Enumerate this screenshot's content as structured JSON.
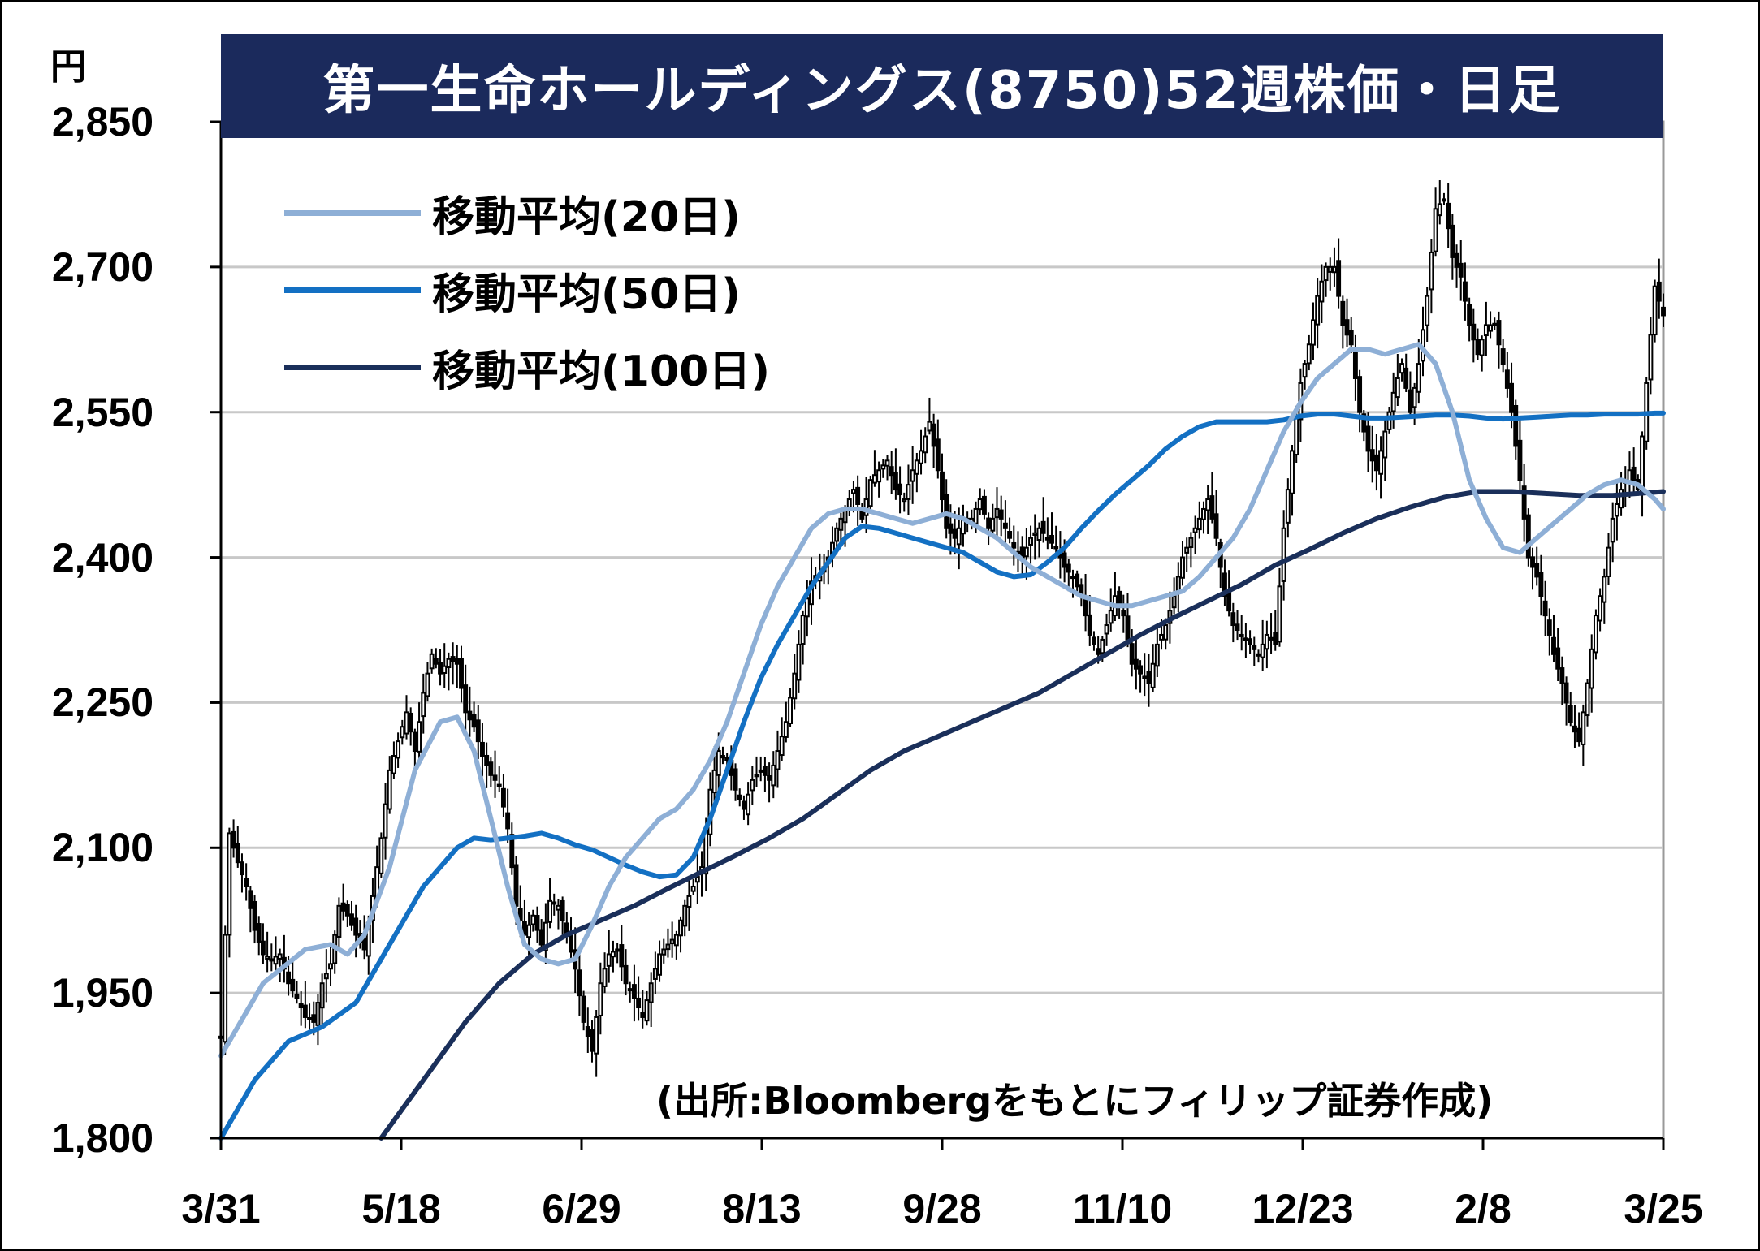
{
  "chart_data": {
    "type": "candlestick",
    "title": "第一生命ホールディングス(8750)52週株価・日足",
    "unit": "円",
    "source": "(出所:Bloombergをもとにフィリップ証券作成)",
    "ylim": [
      1800,
      2850
    ],
    "yticks": [
      "1,800",
      "1,950",
      "2,100",
      "2,250",
      "2,400",
      "2,550",
      "2,700",
      "2,850"
    ],
    "ytick_values": [
      1800,
      1950,
      2100,
      2250,
      2400,
      2550,
      2700,
      2850
    ],
    "xticks": [
      "3/31",
      "5/18",
      "6/29",
      "8/13",
      "9/28",
      "11/10",
      "12/23",
      "2/8",
      "3/25"
    ],
    "grid": true,
    "legend_position": "top-left",
    "colors": {
      "title_bg": "#1b2a5c",
      "ma20": "#8eafd6",
      "ma50": "#1370c3",
      "ma100": "#1a2f5a",
      "candle": "#000000",
      "grid": "#c8c8c8"
    },
    "legend": [
      {
        "label": "移動平均(20日)",
        "color": "#8eafd6"
      },
      {
        "label": "移動平均(50日)",
        "color": "#1370c3"
      },
      {
        "label": "移動平均(100日)",
        "color": "#1a2f5a"
      }
    ],
    "close_path": [
      [
        0,
        1905
      ],
      [
        2,
        2115
      ],
      [
        4,
        2085
      ],
      [
        6,
        2060
      ],
      [
        8,
        2015
      ],
      [
        10,
        1990
      ],
      [
        12,
        1985
      ],
      [
        14,
        1990
      ],
      [
        16,
        1960
      ],
      [
        18,
        1945
      ],
      [
        20,
        1925
      ],
      [
        22,
        1920
      ],
      [
        24,
        1960
      ],
      [
        26,
        1980
      ],
      [
        28,
        2040
      ],
      [
        30,
        2030
      ],
      [
        32,
        2010
      ],
      [
        34,
        1995
      ],
      [
        36,
        2050
      ],
      [
        38,
        2110
      ],
      [
        40,
        2180
      ],
      [
        42,
        2210
      ],
      [
        44,
        2240
      ],
      [
        46,
        2200
      ],
      [
        48,
        2260
      ],
      [
        50,
        2300
      ],
      [
        52,
        2280
      ],
      [
        54,
        2295
      ],
      [
        56,
        2290
      ],
      [
        58,
        2240
      ],
      [
        60,
        2225
      ],
      [
        62,
        2195
      ],
      [
        64,
        2175
      ],
      [
        66,
        2165
      ],
      [
        68,
        2120
      ],
      [
        70,
        2040
      ],
      [
        72,
        2010
      ],
      [
        74,
        2030
      ],
      [
        76,
        2000
      ],
      [
        78,
        2045
      ],
      [
        80,
        2040
      ],
      [
        82,
        2010
      ],
      [
        84,
        1975
      ],
      [
        86,
        1920
      ],
      [
        88,
        1890
      ],
      [
        90,
        1960
      ],
      [
        92,
        1990
      ],
      [
        94,
        1995
      ],
      [
        96,
        1960
      ],
      [
        98,
        1945
      ],
      [
        100,
        1925
      ],
      [
        102,
        1960
      ],
      [
        104,
        1990
      ],
      [
        106,
        2000
      ],
      [
        108,
        2010
      ],
      [
        110,
        2040
      ],
      [
        112,
        2060
      ],
      [
        114,
        2080
      ],
      [
        116,
        2160
      ],
      [
        118,
        2200
      ],
      [
        120,
        2190
      ],
      [
        122,
        2160
      ],
      [
        124,
        2140
      ],
      [
        126,
        2170
      ],
      [
        128,
        2180
      ],
      [
        130,
        2170
      ],
      [
        132,
        2200
      ],
      [
        134,
        2230
      ],
      [
        136,
        2280
      ],
      [
        138,
        2340
      ],
      [
        140,
        2375
      ],
      [
        142,
        2380
      ],
      [
        144,
        2400
      ],
      [
        146,
        2430
      ],
      [
        148,
        2450
      ],
      [
        150,
        2470
      ],
      [
        152,
        2440
      ],
      [
        154,
        2480
      ],
      [
        156,
        2490
      ],
      [
        158,
        2500
      ],
      [
        160,
        2470
      ],
      [
        162,
        2460
      ],
      [
        164,
        2490
      ],
      [
        166,
        2510
      ],
      [
        168,
        2540
      ],
      [
        170,
        2490
      ],
      [
        172,
        2430
      ],
      [
        174,
        2420
      ],
      [
        176,
        2440
      ],
      [
        178,
        2440
      ],
      [
        180,
        2460
      ],
      [
        182,
        2430
      ],
      [
        184,
        2450
      ],
      [
        186,
        2430
      ],
      [
        188,
        2410
      ],
      [
        190,
        2400
      ],
      [
        192,
        2420
      ],
      [
        194,
        2430
      ],
      [
        196,
        2420
      ],
      [
        198,
        2410
      ],
      [
        200,
        2390
      ],
      [
        202,
        2380
      ],
      [
        204,
        2360
      ],
      [
        206,
        2320
      ],
      [
        208,
        2300
      ],
      [
        210,
        2330
      ],
      [
        212,
        2360
      ],
      [
        214,
        2340
      ],
      [
        216,
        2290
      ],
      [
        218,
        2280
      ],
      [
        220,
        2270
      ],
      [
        222,
        2310
      ],
      [
        224,
        2330
      ],
      [
        226,
        2360
      ],
      [
        228,
        2400
      ],
      [
        230,
        2420
      ],
      [
        232,
        2440
      ],
      [
        234,
        2460
      ],
      [
        236,
        2420
      ],
      [
        238,
        2360
      ],
      [
        240,
        2330
      ],
      [
        242,
        2320
      ],
      [
        244,
        2310
      ],
      [
        246,
        2300
      ],
      [
        248,
        2320
      ],
      [
        250,
        2310
      ],
      [
        252,
        2430
      ],
      [
        254,
        2510
      ],
      [
        256,
        2580
      ],
      [
        258,
        2620
      ],
      [
        260,
        2670
      ],
      [
        262,
        2700
      ],
      [
        264,
        2700
      ],
      [
        266,
        2640
      ],
      [
        268,
        2620
      ],
      [
        270,
        2550
      ],
      [
        272,
        2510
      ],
      [
        274,
        2490
      ],
      [
        276,
        2530
      ],
      [
        278,
        2570
      ],
      [
        280,
        2600
      ],
      [
        282,
        2550
      ],
      [
        284,
        2600
      ],
      [
        286,
        2670
      ],
      [
        288,
        2760
      ],
      [
        290,
        2770
      ],
      [
        292,
        2710
      ],
      [
        294,
        2690
      ],
      [
        296,
        2640
      ],
      [
        298,
        2610
      ],
      [
        300,
        2640
      ],
      [
        302,
        2640
      ],
      [
        304,
        2600
      ],
      [
        306,
        2550
      ],
      [
        308,
        2480
      ],
      [
        310,
        2400
      ],
      [
        312,
        2380
      ],
      [
        314,
        2340
      ],
      [
        316,
        2300
      ],
      [
        318,
        2270
      ],
      [
        320,
        2230
      ],
      [
        322,
        2210
      ],
      [
        324,
        2270
      ],
      [
        326,
        2340
      ],
      [
        328,
        2380
      ],
      [
        330,
        2440
      ],
      [
        332,
        2470
      ],
      [
        334,
        2490
      ],
      [
        336,
        2470
      ],
      [
        338,
        2580
      ],
      [
        340,
        2680
      ],
      [
        342,
        2650
      ]
    ],
    "ma20": [
      [
        0,
        1885
      ],
      [
        10,
        1960
      ],
      [
        20,
        1995
      ],
      [
        26,
        2000
      ],
      [
        30,
        1990
      ],
      [
        34,
        2010
      ],
      [
        40,
        2080
      ],
      [
        46,
        2180
      ],
      [
        52,
        2230
      ],
      [
        56,
        2235
      ],
      [
        60,
        2200
      ],
      [
        64,
        2130
      ],
      [
        68,
        2060
      ],
      [
        72,
        2000
      ],
      [
        76,
        1985
      ],
      [
        80,
        1980
      ],
      [
        84,
        1985
      ],
      [
        88,
        2020
      ],
      [
        92,
        2060
      ],
      [
        96,
        2090
      ],
      [
        100,
        2110
      ],
      [
        104,
        2130
      ],
      [
        108,
        2140
      ],
      [
        112,
        2160
      ],
      [
        116,
        2190
      ],
      [
        120,
        2230
      ],
      [
        124,
        2280
      ],
      [
        128,
        2330
      ],
      [
        132,
        2370
      ],
      [
        136,
        2400
      ],
      [
        140,
        2430
      ],
      [
        144,
        2445
      ],
      [
        148,
        2450
      ],
      [
        152,
        2450
      ],
      [
        156,
        2445
      ],
      [
        160,
        2440
      ],
      [
        164,
        2435
      ],
      [
        168,
        2440
      ],
      [
        172,
        2445
      ],
      [
        176,
        2440
      ],
      [
        180,
        2430
      ],
      [
        184,
        2420
      ],
      [
        188,
        2405
      ],
      [
        192,
        2390
      ],
      [
        196,
        2380
      ],
      [
        200,
        2370
      ],
      [
        204,
        2360
      ],
      [
        208,
        2355
      ],
      [
        212,
        2350
      ],
      [
        216,
        2350
      ],
      [
        220,
        2355
      ],
      [
        224,
        2360
      ],
      [
        228,
        2365
      ],
      [
        232,
        2380
      ],
      [
        236,
        2400
      ],
      [
        240,
        2420
      ],
      [
        244,
        2450
      ],
      [
        248,
        2490
      ],
      [
        252,
        2530
      ],
      [
        256,
        2560
      ],
      [
        260,
        2585
      ],
      [
        264,
        2600
      ],
      [
        268,
        2615
      ],
      [
        272,
        2615
      ],
      [
        276,
        2610
      ],
      [
        280,
        2615
      ],
      [
        284,
        2620
      ],
      [
        288,
        2600
      ],
      [
        292,
        2550
      ],
      [
        296,
        2480
      ],
      [
        300,
        2440
      ],
      [
        304,
        2410
      ],
      [
        308,
        2405
      ],
      [
        312,
        2420
      ],
      [
        316,
        2435
      ],
      [
        320,
        2450
      ],
      [
        324,
        2465
      ],
      [
        328,
        2475
      ],
      [
        332,
        2480
      ],
      [
        336,
        2475
      ],
      [
        340,
        2460
      ],
      [
        342,
        2450
      ]
    ],
    "ma50": [
      [
        0,
        1795
      ],
      [
        8,
        1860
      ],
      [
        16,
        1900
      ],
      [
        24,
        1915
      ],
      [
        32,
        1940
      ],
      [
        40,
        2000
      ],
      [
        48,
        2060
      ],
      [
        56,
        2100
      ],
      [
        60,
        2110
      ],
      [
        64,
        2108
      ],
      [
        68,
        2110
      ],
      [
        72,
        2112
      ],
      [
        76,
        2115
      ],
      [
        80,
        2110
      ],
      [
        84,
        2103
      ],
      [
        88,
        2098
      ],
      [
        92,
        2090
      ],
      [
        96,
        2082
      ],
      [
        100,
        2075
      ],
      [
        104,
        2070
      ],
      [
        108,
        2072
      ],
      [
        112,
        2090
      ],
      [
        116,
        2130
      ],
      [
        120,
        2180
      ],
      [
        124,
        2230
      ],
      [
        128,
        2275
      ],
      [
        132,
        2310
      ],
      [
        136,
        2340
      ],
      [
        140,
        2370
      ],
      [
        144,
        2395
      ],
      [
        148,
        2420
      ],
      [
        152,
        2432
      ],
      [
        156,
        2430
      ],
      [
        160,
        2425
      ],
      [
        164,
        2420
      ],
      [
        168,
        2415
      ],
      [
        172,
        2410
      ],
      [
        176,
        2405
      ],
      [
        180,
        2395
      ],
      [
        184,
        2385
      ],
      [
        188,
        2380
      ],
      [
        192,
        2382
      ],
      [
        196,
        2395
      ],
      [
        200,
        2410
      ],
      [
        204,
        2430
      ],
      [
        208,
        2448
      ],
      [
        212,
        2465
      ],
      [
        216,
        2480
      ],
      [
        220,
        2495
      ],
      [
        224,
        2512
      ],
      [
        228,
        2525
      ],
      [
        232,
        2535
      ],
      [
        236,
        2540
      ],
      [
        240,
        2540
      ],
      [
        244,
        2540
      ],
      [
        248,
        2540
      ],
      [
        252,
        2542
      ],
      [
        256,
        2546
      ],
      [
        260,
        2548
      ],
      [
        264,
        2548
      ],
      [
        268,
        2546
      ],
      [
        272,
        2544
      ],
      [
        276,
        2544
      ],
      [
        280,
        2545
      ],
      [
        284,
        2546
      ],
      [
        288,
        2547
      ],
      [
        292,
        2547
      ],
      [
        296,
        2546
      ],
      [
        300,
        2544
      ],
      [
        304,
        2543
      ],
      [
        308,
        2544
      ],
      [
        312,
        2545
      ],
      [
        316,
        2546
      ],
      [
        320,
        2547
      ],
      [
        324,
        2547
      ],
      [
        328,
        2548
      ],
      [
        332,
        2548
      ],
      [
        336,
        2548
      ],
      [
        340,
        2549
      ],
      [
        342,
        2549
      ]
    ],
    "ma100": [
      [
        38,
        1800
      ],
      [
        48,
        1860
      ],
      [
        58,
        1920
      ],
      [
        66,
        1960
      ],
      [
        74,
        1990
      ],
      [
        82,
        2010
      ],
      [
        90,
        2025
      ],
      [
        98,
        2040
      ],
      [
        106,
        2058
      ],
      [
        114,
        2075
      ],
      [
        122,
        2092
      ],
      [
        130,
        2110
      ],
      [
        138,
        2130
      ],
      [
        146,
        2155
      ],
      [
        154,
        2180
      ],
      [
        162,
        2200
      ],
      [
        170,
        2215
      ],
      [
        178,
        2230
      ],
      [
        186,
        2245
      ],
      [
        194,
        2260
      ],
      [
        202,
        2280
      ],
      [
        210,
        2300
      ],
      [
        218,
        2320
      ],
      [
        226,
        2338
      ],
      [
        234,
        2355
      ],
      [
        242,
        2372
      ],
      [
        250,
        2392
      ],
      [
        258,
        2408
      ],
      [
        266,
        2425
      ],
      [
        274,
        2440
      ],
      [
        282,
        2452
      ],
      [
        290,
        2462
      ],
      [
        298,
        2468
      ],
      [
        306,
        2468
      ],
      [
        314,
        2466
      ],
      [
        322,
        2464
      ],
      [
        330,
        2464
      ],
      [
        336,
        2466
      ],
      [
        342,
        2468
      ]
    ]
  }
}
